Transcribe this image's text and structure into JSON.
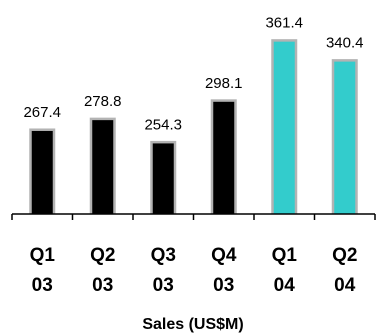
{
  "chart_data": {
    "type": "bar",
    "categories": [
      [
        "Q1",
        "03"
      ],
      [
        "Q2",
        "03"
      ],
      [
        "Q3",
        "03"
      ],
      [
        "Q4",
        "03"
      ],
      [
        "Q1",
        "04"
      ],
      [
        "Q2",
        "04"
      ]
    ],
    "values": [
      267.4,
      278.8,
      254.3,
      298.1,
      361.4,
      340.4
    ],
    "value_labels": [
      "267.4",
      "278.8",
      "254.3",
      "298.1",
      "361.4",
      "340.4"
    ],
    "bar_colors": [
      "#000000",
      "#000000",
      "#000000",
      "#000000",
      "#33cccc",
      "#33cccc"
    ],
    "bar_outline_color": "#b3b3b3",
    "title": "",
    "xlabel": "Sales (US$M)",
    "ylabel": "",
    "ylim": [
      180,
      380
    ],
    "grid": false,
    "legend": "none"
  }
}
